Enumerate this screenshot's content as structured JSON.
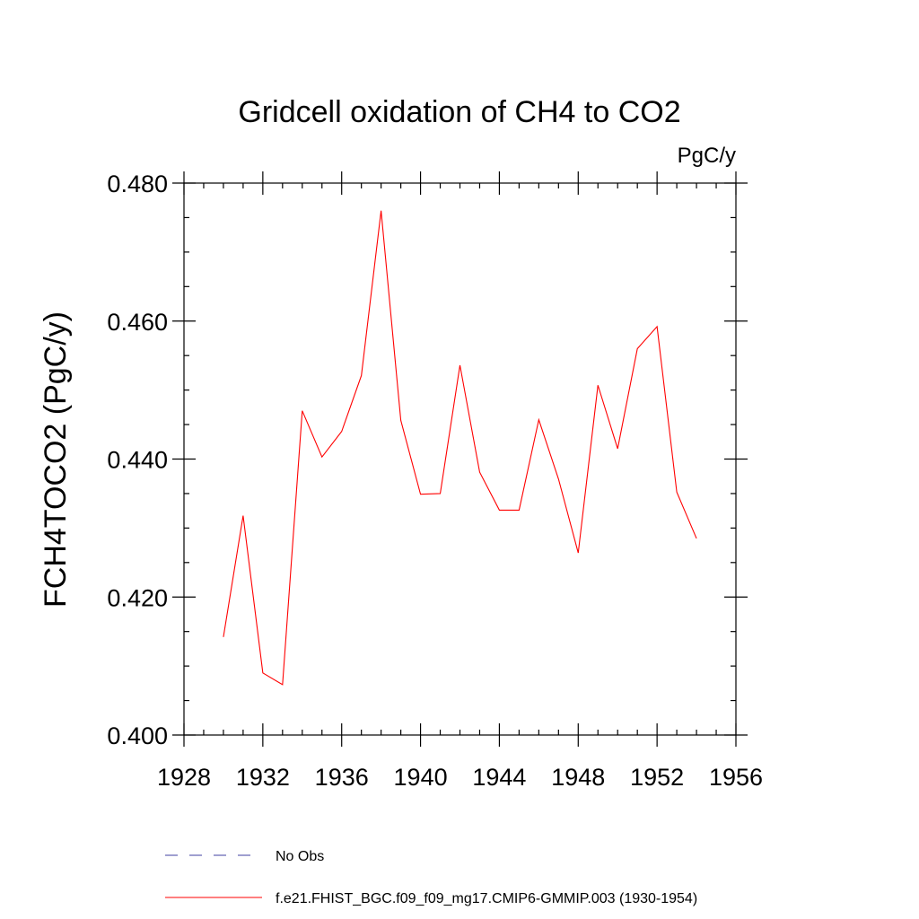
{
  "chart_data": {
    "type": "line",
    "title": "Gridcell oxidation of CH4 to CO2",
    "units_label": "PgC/y",
    "ylabel": "FCH4TOCO2  (PgC/y)",
    "xlabel": "",
    "xlim": [
      1928,
      1956
    ],
    "ylim": [
      0.4,
      0.48
    ],
    "x_ticks": [
      1928,
      1932,
      1936,
      1940,
      1944,
      1948,
      1952,
      1956
    ],
    "x_tick_labels": [
      "1928",
      "1932",
      "1936",
      "1940",
      "1944",
      "1948",
      "1952",
      "1956"
    ],
    "y_ticks": [
      0.4,
      0.42,
      0.44,
      0.46,
      0.48
    ],
    "y_tick_labels": [
      "0.400",
      "0.420",
      "0.440",
      "0.460",
      "0.480"
    ],
    "x_minor_step": 1,
    "y_minor_step": 0.005,
    "grid": false,
    "series": [
      {
        "name": "f.e21.FHIST_BGC.f09_f09_mg17.CMIP6-GMMIP.003 (1930-1954)",
        "color": "#ff0000",
        "dash": "solid",
        "x": [
          1930,
          1931,
          1932,
          1933,
          1934,
          1935,
          1936,
          1937,
          1938,
          1939,
          1940,
          1941,
          1942,
          1943,
          1944,
          1945,
          1946,
          1947,
          1948,
          1949,
          1950,
          1951,
          1952,
          1953,
          1954
        ],
        "values": [
          0.4142,
          0.4318,
          0.409,
          0.4073,
          0.447,
          0.4403,
          0.444,
          0.4521,
          0.476,
          0.4456,
          0.4349,
          0.435,
          0.4536,
          0.4381,
          0.4326,
          0.4326,
          0.4457,
          0.4371,
          0.4264,
          0.4507,
          0.4415,
          0.456,
          0.4592,
          0.4352,
          0.4285
        ]
      }
    ],
    "legend": [
      {
        "label": "No Obs",
        "color": "#3f3fa0",
        "dash": "dashed"
      },
      {
        "label": "f.e21.FHIST_BGC.f09_f09_mg17.CMIP6-GMMIP.003 (1930-1954)",
        "color": "#ff0000",
        "dash": "solid"
      }
    ],
    "legend_position": "bottom"
  }
}
